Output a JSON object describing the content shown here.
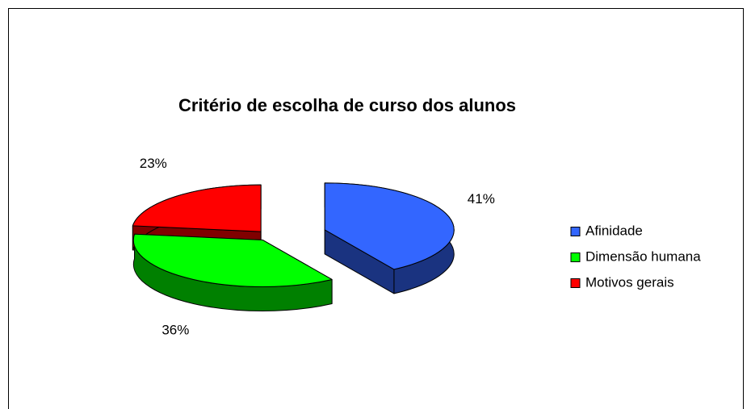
{
  "chart_data": {
    "type": "pie",
    "title": "Critério de escolha de curso dos alunos",
    "categories": [
      "Afinidade",
      "Dimensão humana",
      "Motivos gerais"
    ],
    "values": [
      41,
      36,
      23
    ],
    "value_labels": [
      "41%",
      "36%",
      "23%"
    ],
    "colors": [
      "#3366ff",
      "#00ff00",
      "#ff0000"
    ],
    "legend": "right"
  }
}
